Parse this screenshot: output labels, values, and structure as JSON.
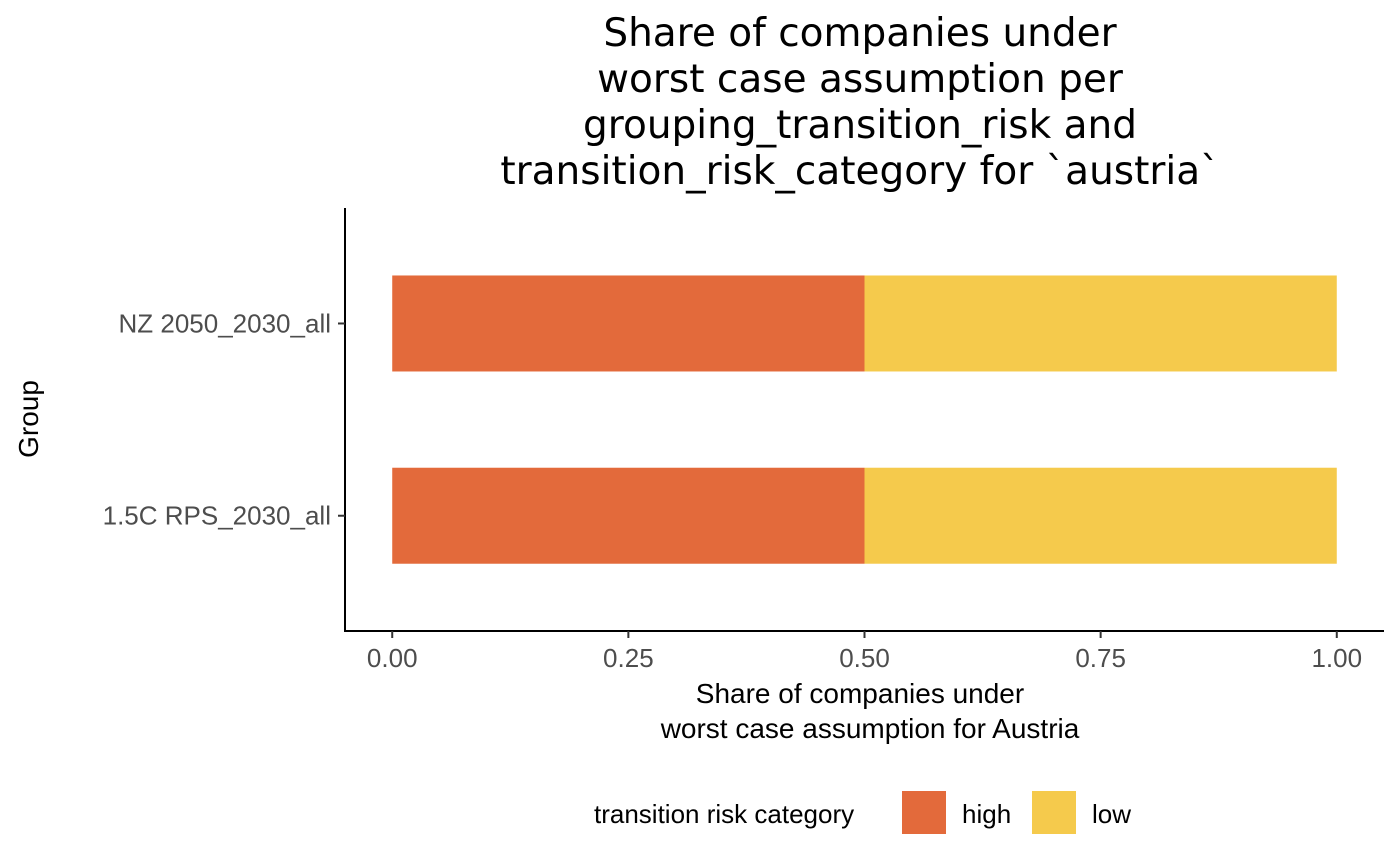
{
  "chart_data": {
    "type": "bar",
    "orientation": "horizontal",
    "stacked": true,
    "title": [
      "Share of companies under",
      "worst case assumption per",
      "grouping_transition_risk and",
      "transition_risk_category for `austria`"
    ],
    "xlabel": [
      "Share of companies under",
      "worst case assumption for Austria"
    ],
    "ylabel": "Group",
    "categories": [
      "NZ 2050_2030_all",
      "1.5C RPS_2030_all"
    ],
    "series": [
      {
        "name": "high",
        "color": "#e36a3b",
        "values": [
          0.5,
          0.5
        ]
      },
      {
        "name": "low",
        "color": "#f5ca4c",
        "values": [
          0.5,
          0.5
        ]
      }
    ],
    "xlim": [
      -0.05,
      1.05
    ],
    "xticks": [
      0,
      0.25,
      0.5,
      0.75,
      1
    ],
    "xtick_labels": [
      "0.00",
      "0.25",
      "0.50",
      "0.75",
      "1.00"
    ],
    "grid": false,
    "legend": {
      "title": "transition risk category",
      "position": "bottom",
      "entries": [
        "high",
        "low"
      ]
    }
  }
}
